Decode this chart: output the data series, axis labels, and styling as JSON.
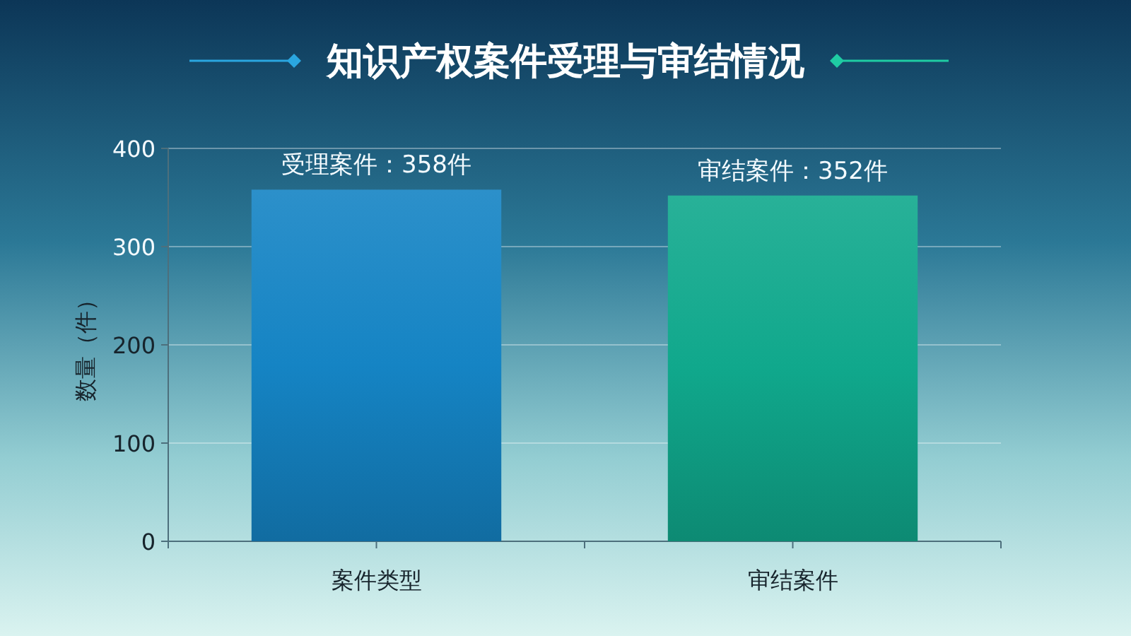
{
  "chart_data": {
    "type": "bar",
    "title": "知识产权案件受理与审结情况",
    "categories": [
      "案件类型",
      "审结案件"
    ],
    "values": [
      358,
      352
    ],
    "colors": [
      "#1584c4",
      "#10a88c"
    ],
    "value_labels": [
      "受理案件：358件",
      "审结案件：352件"
    ],
    "ylabel": "数量（件）",
    "ylim": [
      0,
      400
    ],
    "yticks": [
      0,
      100,
      200,
      300,
      400
    ],
    "grid": "y"
  }
}
